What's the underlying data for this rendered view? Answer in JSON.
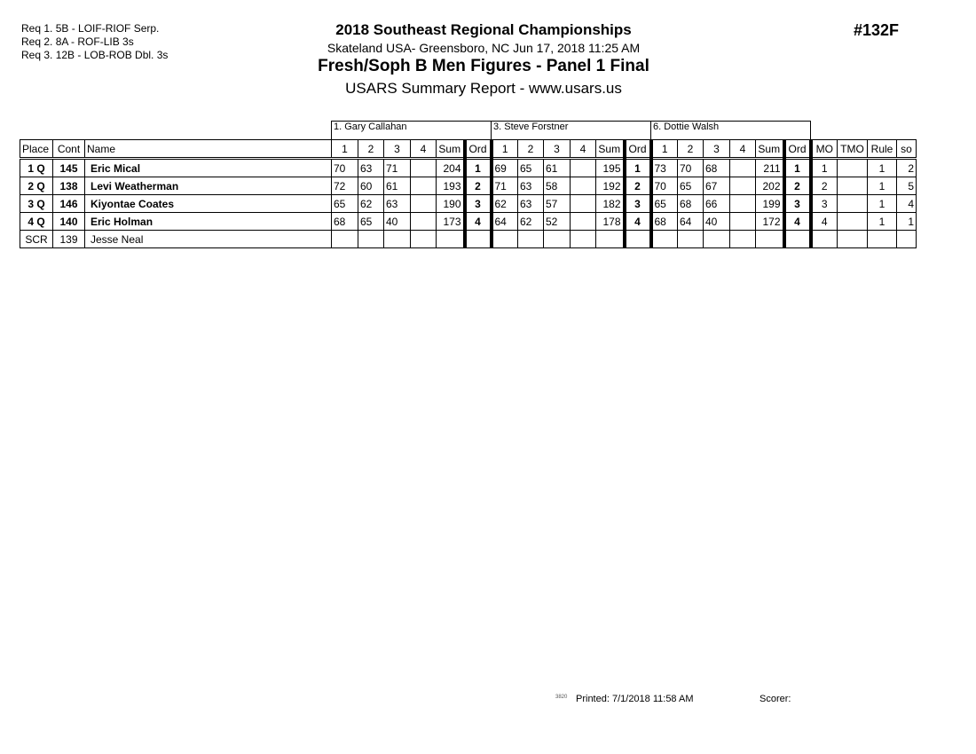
{
  "requirements": [
    "Req  1.  5B - LOIF-RIOF Serp.",
    "Req  2.  8A - ROF-LIB 3s",
    "Req  3.  12B - LOB-ROB Dbl. 3s"
  ],
  "header": {
    "title": "2018 Southeast Regional Championships",
    "location": "Skateland USA- Greensboro, NC  Jun 17, 2018  11:25 AM",
    "event": "Fresh/Soph B Men Figures - Panel 1 Final",
    "report": "USARS Summary Report - www.usars.us",
    "event_number": "#132F"
  },
  "judges": [
    "1.  Gary Callahan",
    "3.  Steve Forstner",
    "6.  Dottie Walsh"
  ],
  "columns": {
    "place": "Place",
    "cont": "Cont",
    "name": "Name",
    "judge_cols": [
      "1",
      "2",
      "3",
      "4",
      "Sum",
      "Ord"
    ],
    "tail": [
      "MO",
      "TMO",
      "Rule",
      "so"
    ]
  },
  "rows": [
    {
      "place": "1 Q",
      "cont": "145",
      "name": "Eric Mical",
      "bold": true,
      "scores": [
        [
          "70",
          "63",
          "71",
          "",
          "204",
          "1"
        ],
        [
          "69",
          "65",
          "61",
          "",
          "195",
          "1"
        ],
        [
          "73",
          "70",
          "68",
          "",
          "211",
          "1"
        ]
      ],
      "tail": [
        "1",
        "",
        "1",
        "2"
      ]
    },
    {
      "place": "2 Q",
      "cont": "138",
      "name": "Levi Weatherman",
      "bold": true,
      "scores": [
        [
          "72",
          "60",
          "61",
          "",
          "193",
          "2"
        ],
        [
          "71",
          "63",
          "58",
          "",
          "192",
          "2"
        ],
        [
          "70",
          "65",
          "67",
          "",
          "202",
          "2"
        ]
      ],
      "tail": [
        "2",
        "",
        "1",
        "5"
      ]
    },
    {
      "place": "3 Q",
      "cont": "146",
      "name": "Kiyontae Coates",
      "bold": true,
      "scores": [
        [
          "65",
          "62",
          "63",
          "",
          "190",
          "3"
        ],
        [
          "62",
          "63",
          "57",
          "",
          "182",
          "3"
        ],
        [
          "65",
          "68",
          "66",
          "",
          "199",
          "3"
        ]
      ],
      "tail": [
        "3",
        "",
        "1",
        "4"
      ]
    },
    {
      "place": "4 Q",
      "cont": "140",
      "name": "Eric Holman",
      "bold": true,
      "scores": [
        [
          "68",
          "65",
          "40",
          "",
          "173",
          "4"
        ],
        [
          "64",
          "62",
          "52",
          "",
          "178",
          "4"
        ],
        [
          "68",
          "64",
          "40",
          "",
          "172",
          "4"
        ]
      ],
      "tail": [
        "4",
        "",
        "1",
        "1"
      ]
    },
    {
      "place": "SCR",
      "cont": "139",
      "name": "Jesse Neal",
      "bold": false,
      "scores": [
        [
          "",
          "",
          "",
          "",
          "",
          ""
        ],
        [
          "",
          "",
          "",
          "",
          "",
          ""
        ],
        [
          "",
          "",
          "",
          "",
          "",
          ""
        ]
      ],
      "tail": [
        "",
        "",
        "",
        ""
      ]
    }
  ],
  "footer": {
    "code": "3820",
    "printed": "Printed:  7/1/2018  11:58 AM",
    "scorer": "Scorer:"
  }
}
